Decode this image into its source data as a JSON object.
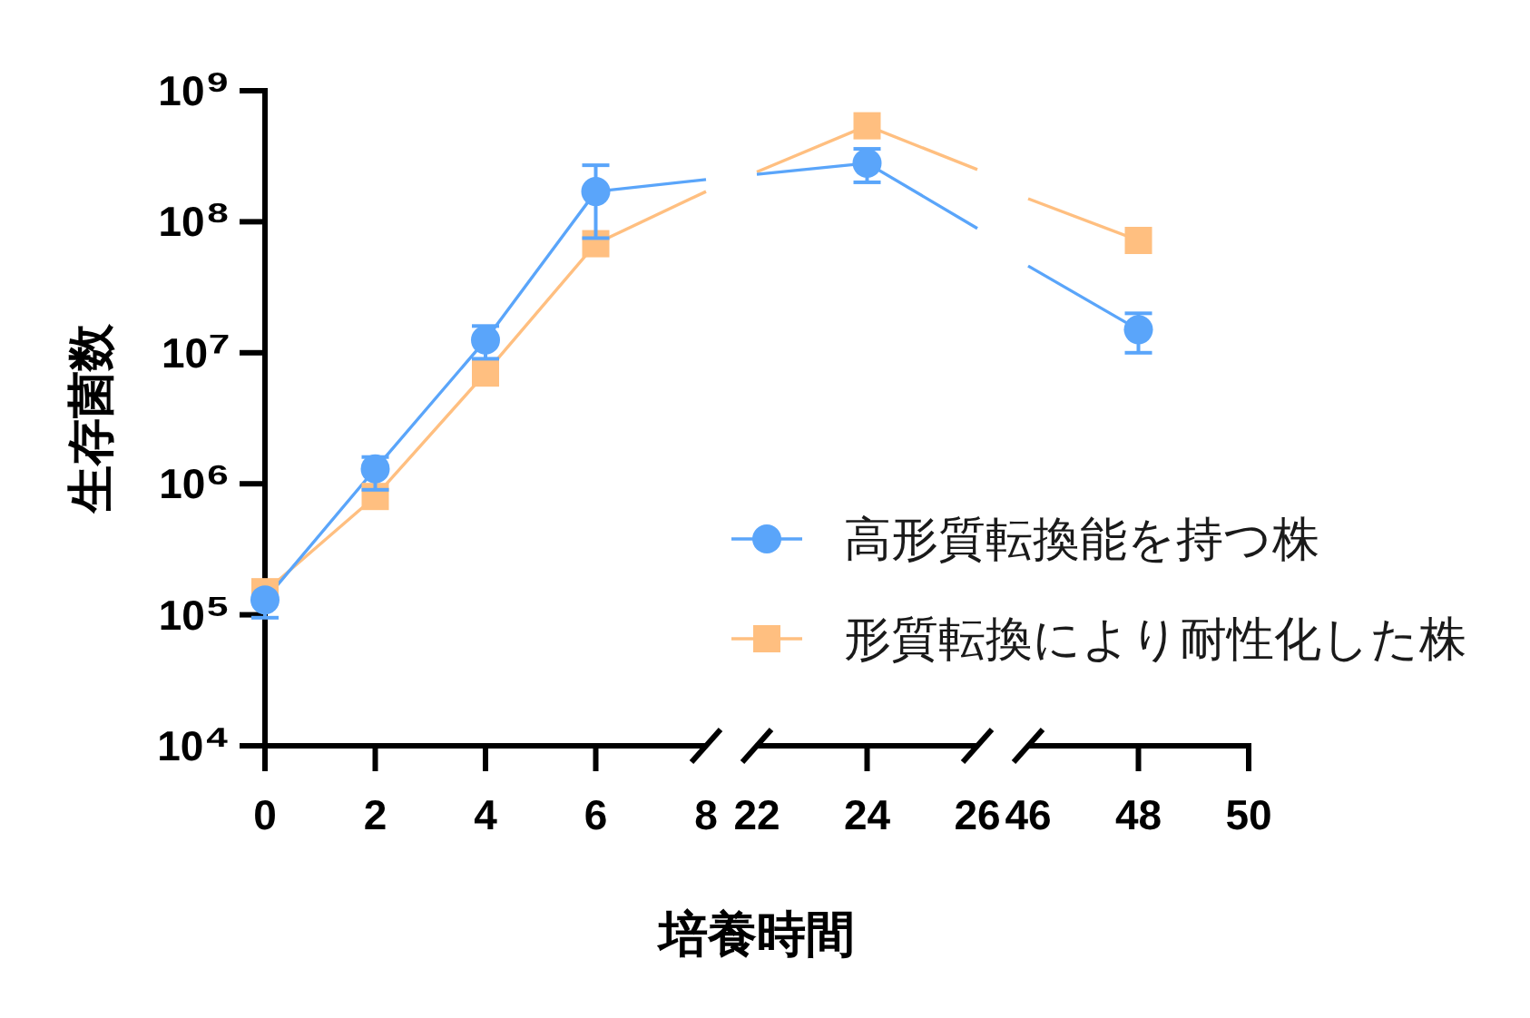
{
  "chart_data": [
    {
      "type": "line",
      "ylabel": "生存菌数",
      "x": [
        0,
        2,
        4,
        6
      ],
      "xlim": [
        0,
        8
      ],
      "xticks": [
        0,
        2,
        4,
        6,
        8
      ],
      "ylim": [
        10000,
        1000000000
      ],
      "yticks": [
        {
          "value": 10000,
          "label": "10⁴"
        },
        {
          "value": 100000,
          "label": "10⁵"
        },
        {
          "value": 1000000,
          "label": "10⁶"
        },
        {
          "value": 10000000,
          "label": "10⁷"
        },
        {
          "value": 100000000,
          "label": "10⁸"
        },
        {
          "value": 1000000000,
          "label": "10⁹"
        }
      ],
      "log": true,
      "series": [
        {
          "color": "#5aa5fa",
          "marker": "circle",
          "values": [
            130000,
            1300000,
            12500000,
            170000000
          ],
          "errors": [
            [
              95000,
              130000
            ],
            [
              900000,
              1600000
            ],
            [
              9000000,
              16000000
            ],
            [
              75000000,
              270000000
            ]
          ]
        },
        {
          "color": "#ffbf80",
          "marker": "square",
          "values": [
            150000,
            800000,
            7000000,
            68000000
          ]
        },
        {
          "color": "#5aa5fa",
          "marker": "none",
          "x": [
            6,
            8
          ],
          "values": [
            170000000,
            210000000
          ]
        },
        {
          "color": "#ffbf80",
          "marker": "none",
          "x": [
            6,
            8
          ],
          "values": [
            68000000,
            170000000
          ]
        }
      ]
    },
    {
      "type": "line",
      "xlabel": "培養時間",
      "x": [
        24
      ],
      "xlim": [
        22,
        26
      ],
      "xticks": [
        22,
        24,
        26
      ],
      "ylim": [
        10000,
        1000000000
      ],
      "log": true,
      "tick_labels": "x",
      "legend": "bottom right",
      "series": [
        {
          "name": "高形質転換能を持つ株",
          "color": "#5aa5fa",
          "marker": "circle",
          "values": [
            280000000
          ],
          "errors": [
            [
              200000000,
              360000000
            ]
          ]
        },
        {
          "name": "形質転換により耐性化した株",
          "color": "#ffbf80",
          "marker": "square",
          "values": [
            540000000
          ]
        },
        {
          "color": "#5aa5fa",
          "marker": "none",
          "x": [
            22,
            24,
            26
          ],
          "values": [
            230000000,
            280000000,
            89000000
          ]
        },
        {
          "color": "#ffbf80",
          "marker": "none",
          "x": [
            22,
            24,
            26
          ],
          "values": [
            240000000,
            540000000,
            250000000
          ]
        }
      ]
    },
    {
      "type": "line",
      "x": [
        48
      ],
      "xlim": [
        46,
        50
      ],
      "xticks": [
        46,
        48,
        50
      ],
      "ylim": [
        10000,
        1000000000
      ],
      "log": true,
      "tick_labels": "x",
      "series": [
        {
          "color": "#5aa5fa",
          "marker": "circle",
          "values": [
            15000000
          ],
          "errors": [
            [
              10000000,
              20000000
            ]
          ]
        },
        {
          "color": "#ffbf80",
          "marker": "square",
          "values": [
            72000000
          ]
        },
        {
          "color": "#5aa5fa",
          "marker": "none",
          "x": [
            46,
            48
          ],
          "values": [
            46000000,
            15000000
          ]
        },
        {
          "color": "#ffbf80",
          "marker": "none",
          "x": [
            46,
            48
          ],
          "values": [
            150000000,
            72000000
          ]
        }
      ]
    }
  ]
}
